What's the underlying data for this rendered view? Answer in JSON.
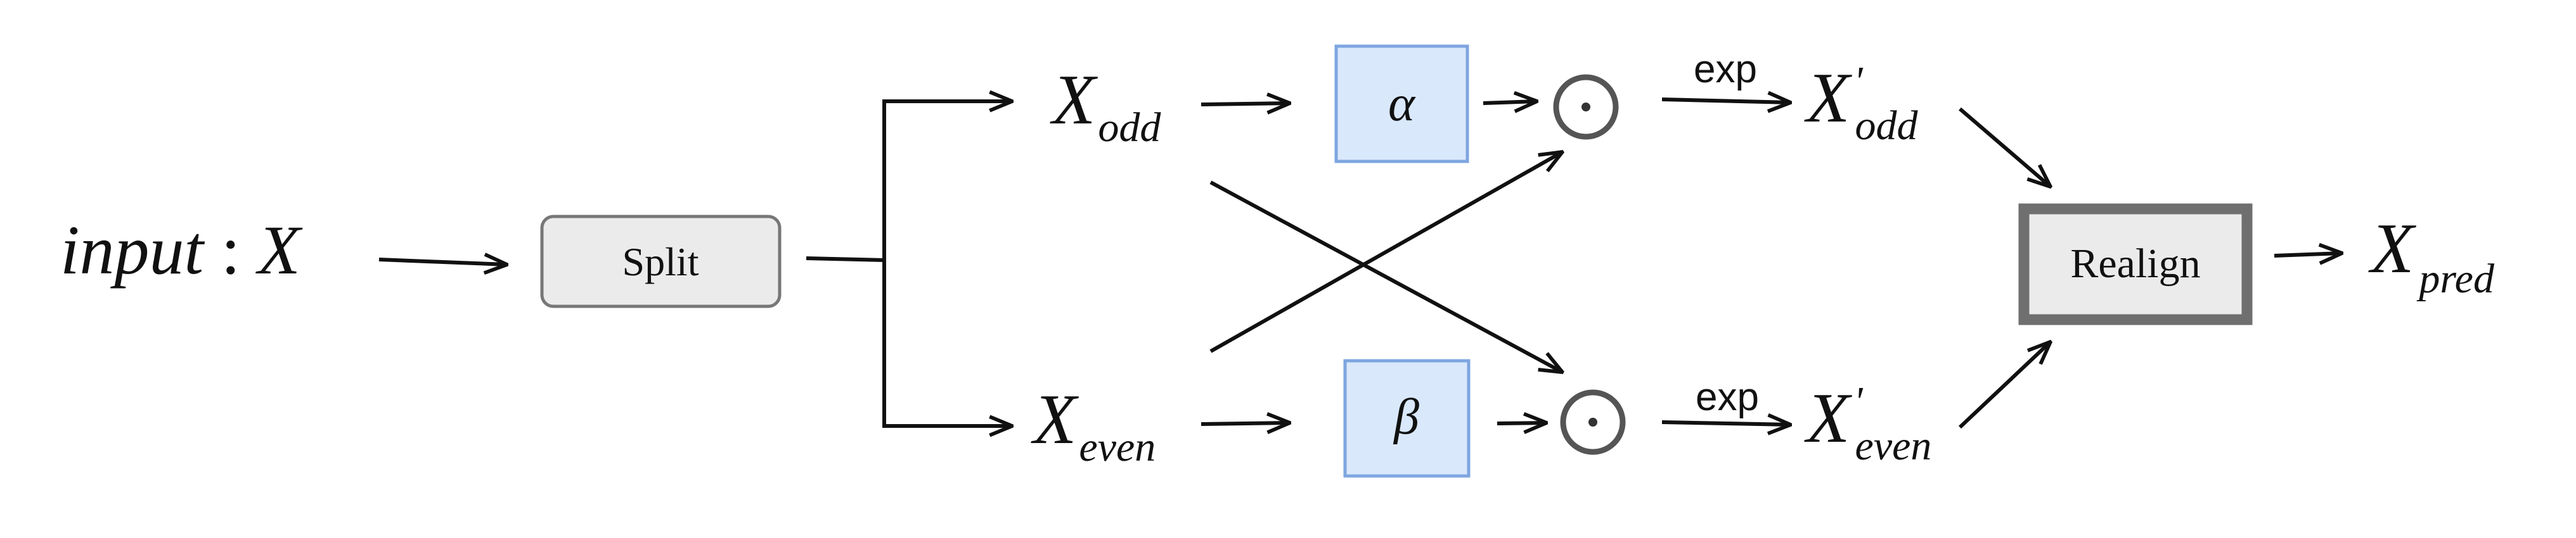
{
  "input": {
    "prefix": "input",
    "colon": " : ",
    "var": "X"
  },
  "split": {
    "label": "Split"
  },
  "x_odd": {
    "var": "X",
    "sub": "odd"
  },
  "x_even": {
    "var": "X",
    "sub": "even"
  },
  "alpha": {
    "label": "α"
  },
  "beta": {
    "label": "β"
  },
  "ops": {
    "symbol": "⊙"
  },
  "exp_top": {
    "label": "exp"
  },
  "exp_bottom": {
    "label": "exp"
  },
  "x_odd_prime": {
    "var": "X",
    "prime": "'",
    "sub": "odd"
  },
  "x_even_prime": {
    "var": "X",
    "prime": "'",
    "sub": "even"
  },
  "realign": {
    "label": "Realign"
  },
  "x_pred": {
    "var": "X",
    "sub": "pred"
  },
  "colors": {
    "param_fill": "#dae8fc",
    "param_stroke": "#7ea6e0",
    "box_fill": "#ebebeb",
    "box_stroke": "#777777",
    "op_stroke": "#555555",
    "wire": "#111111"
  }
}
